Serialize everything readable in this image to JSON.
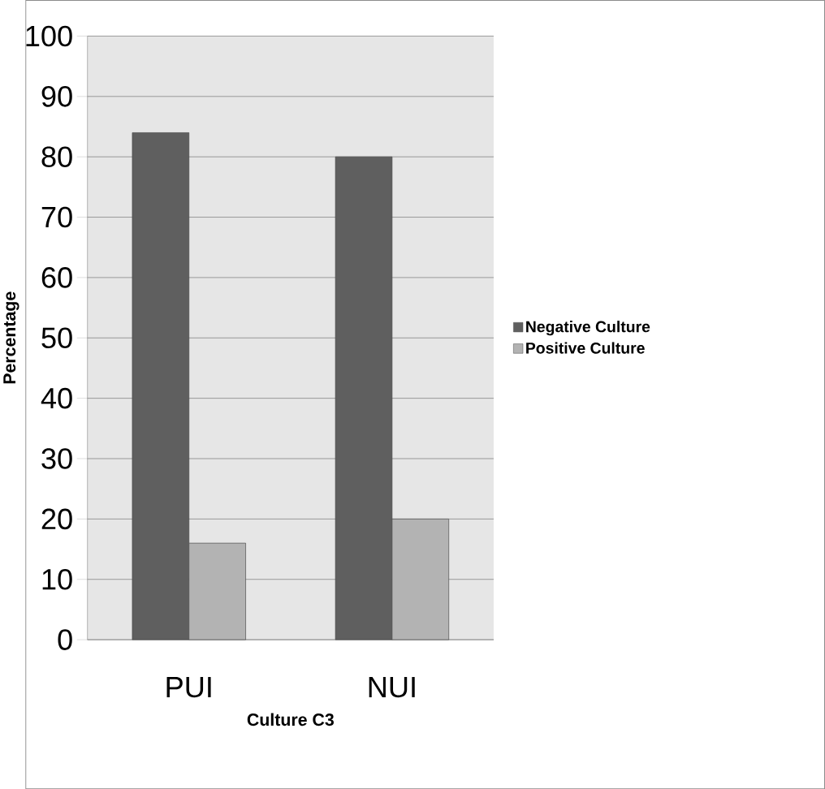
{
  "chart_data": {
    "type": "bar",
    "xlabel": "Culture C3",
    "ylabel": "Percentage",
    "categories": [
      "PUI",
      "NUI"
    ],
    "series": [
      {
        "name": "Negative Culture",
        "color": "#5f5f5f",
        "values": [
          84,
          80
        ]
      },
      {
        "name": "Positive Culture",
        "color": "#b3b3b3",
        "values": [
          16,
          20
        ]
      }
    ],
    "ylim": [
      0,
      100
    ],
    "yticks": [
      0,
      10,
      20,
      30,
      40,
      50,
      60,
      70,
      80,
      90,
      100
    ],
    "grid": "y",
    "legend": "right"
  }
}
